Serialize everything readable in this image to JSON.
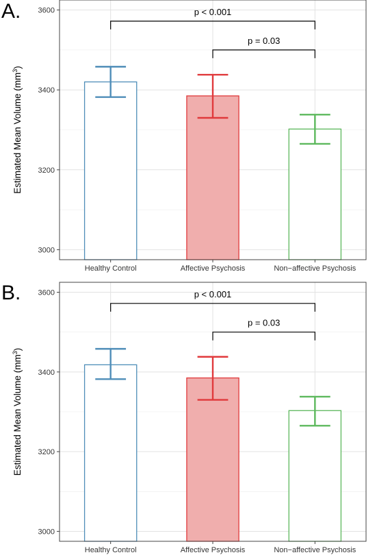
{
  "chart_data": [
    {
      "panel_label": "A.",
      "type": "bar",
      "categories": [
        "Healthy Control",
        "Affective Psychosis",
        "Non−affective Psychosis"
      ],
      "values": [
        3420,
        3385,
        3302
      ],
      "error_low": [
        3382,
        3330,
        3265
      ],
      "error_high": [
        3458,
        3438,
        3338
      ],
      "colors": [
        "#4E8DB8",
        "#E0393B",
        "#5CB85C"
      ],
      "fills": [
        "#ffffff",
        "#F0AEAD",
        "#ffffff"
      ],
      "ylabel": "Estimated Mean Volume (mm",
      "ylabel_sup": "3",
      "ylabel_end": ")",
      "ylim": [
        2975,
        3625
      ],
      "yticks": [
        3000,
        3200,
        3400,
        3600
      ],
      "grid": true,
      "annotations": [
        {
          "label": "p < 0.001",
          "from": 0,
          "to": 2,
          "y": 3572
        },
        {
          "label": "p = 0.03",
          "from": 1,
          "to": 2,
          "y": 3500
        }
      ]
    },
    {
      "panel_label": "B.",
      "type": "bar",
      "categories": [
        "Healthy Control",
        "Affective Psychosis",
        "Non−affective Psychosis"
      ],
      "values": [
        3418,
        3385,
        3303
      ],
      "error_low": [
        3382,
        3330,
        3265
      ],
      "error_high": [
        3458,
        3438,
        3338
      ],
      "colors": [
        "#4E8DB8",
        "#E0393B",
        "#5CB85C"
      ],
      "fills": [
        "#ffffff",
        "#F0AEAD",
        "#ffffff"
      ],
      "ylabel": "Estimated Mean Volume (mm",
      "ylabel_sup": "3",
      "ylabel_end": ")",
      "ylim": [
        2975,
        3625
      ],
      "yticks": [
        3000,
        3200,
        3400,
        3600
      ],
      "grid": true,
      "annotations": [
        {
          "label": "p < 0.001",
          "from": 0,
          "to": 2,
          "y": 3572
        },
        {
          "label": "p = 0.03",
          "from": 1,
          "to": 2,
          "y": 3500
        }
      ]
    }
  ]
}
